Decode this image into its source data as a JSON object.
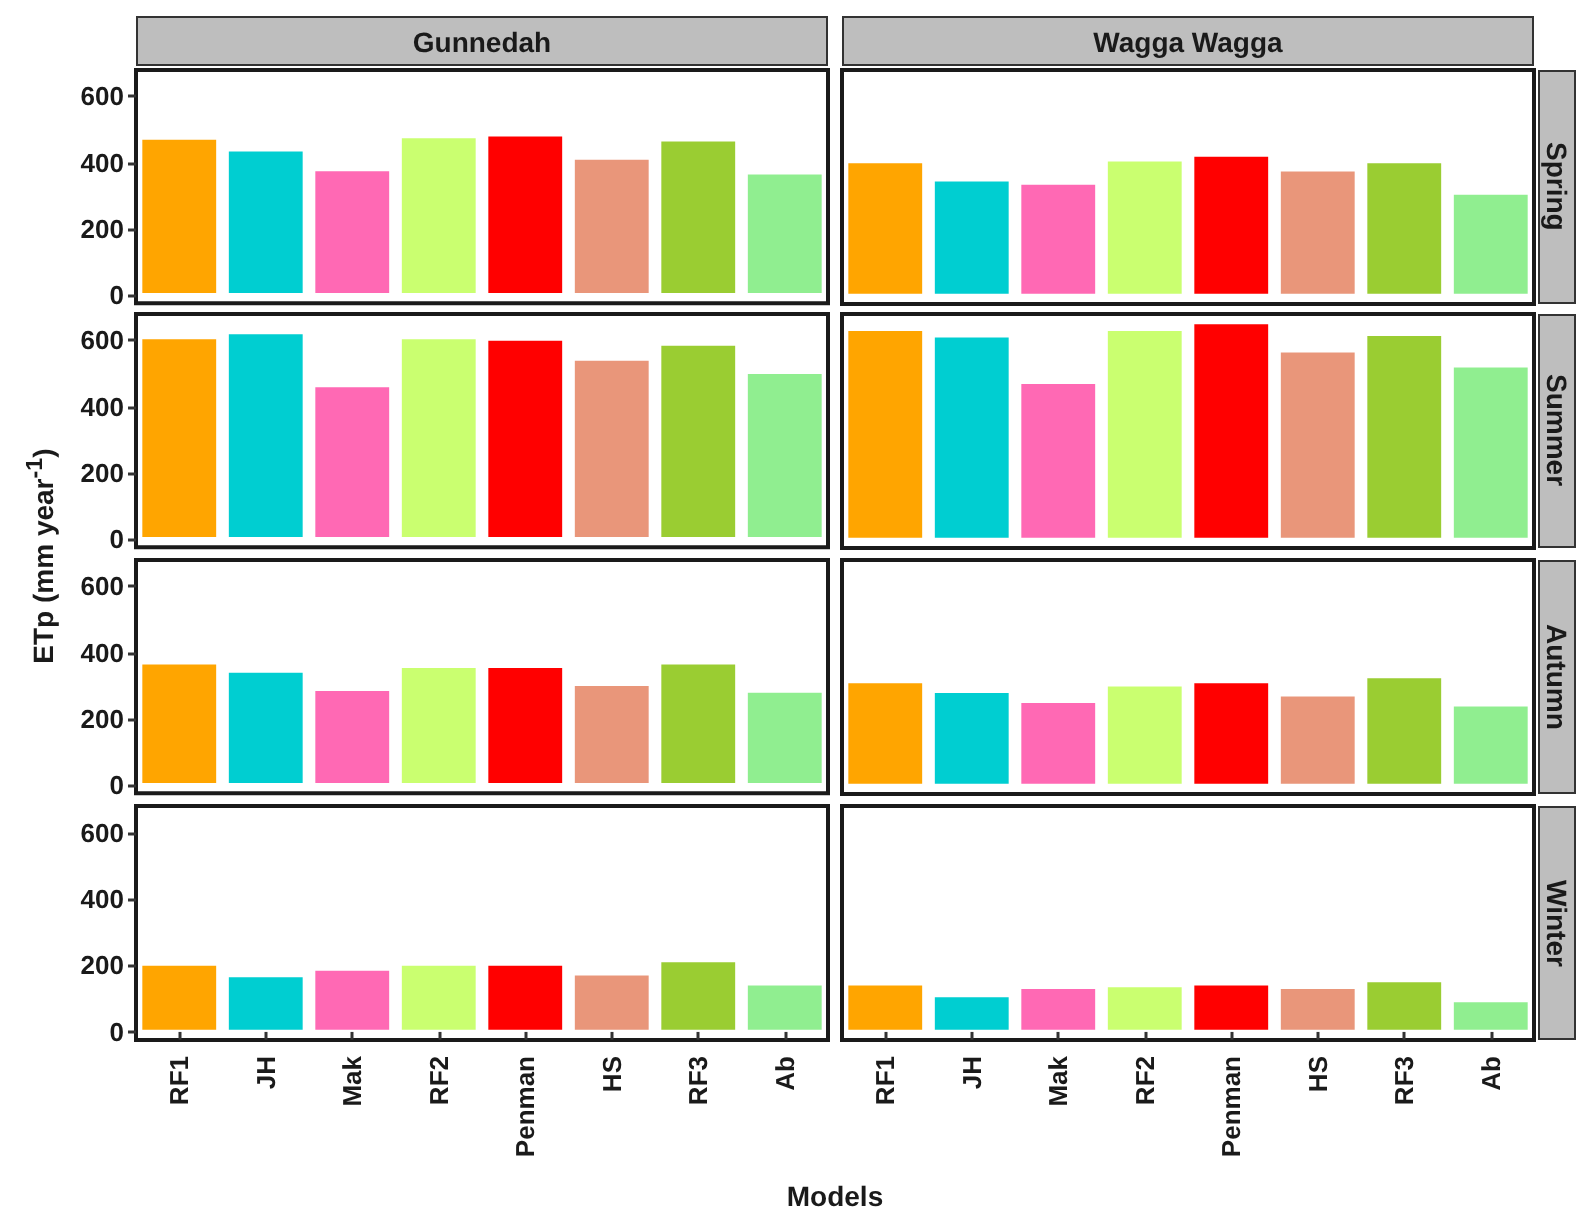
{
  "chart_data": [
    {
      "type": "bar",
      "title": "Gunnedah",
      "ylabel": "ETp (mm year$^{-1}$)",
      "categories": [
        "RF1",
        "JH",
        "Mak",
        "RF2",
        "Penman",
        "HS",
        "RF3",
        "Ab"
      ],
      "values": [
        475,
        440,
        380,
        480,
        485,
        415,
        470,
        370
      ],
      "colors": [
        "#ffa500",
        "#00ced1",
        "#ff69b4",
        "#caff70",
        "#ff0000",
        "#e9967a",
        "#9acd32",
        "#90ee90"
      ],
      "ylim": [
        -25,
        680
      ],
      "yticks": [
        0,
        200,
        400,
        600
      ],
      "tick_labels": "y"
    },
    {
      "type": "bar",
      "title": "Wagga Wagga",
      "subtitle": "Spring",
      "categories": [
        "RF1",
        "JH",
        "Mak",
        "RF2",
        "Penman",
        "HS",
        "RF3",
        "Ab"
      ],
      "values": [
        405,
        350,
        340,
        410,
        425,
        380,
        405,
        310
      ],
      "colors": [
        "#ffa500",
        "#00ced1",
        "#ff69b4",
        "#caff70",
        "#ff0000",
        "#e9967a",
        "#9acd32",
        "#90ee90"
      ],
      "ylim": [
        -25,
        680
      ],
      "yticks": [
        0,
        200,
        400,
        600
      ],
      "tick_labels": false
    },
    {
      "type": "bar",
      "categories": [
        "RF1",
        "JH",
        "Mak",
        "RF2",
        "Penman",
        "HS",
        "RF3",
        "Ab"
      ],
      "values": [
        610,
        625,
        465,
        610,
        605,
        545,
        590,
        505
      ],
      "colors": [
        "#ffa500",
        "#00ced1",
        "#ff69b4",
        "#caff70",
        "#ff0000",
        "#e9967a",
        "#9acd32",
        "#90ee90"
      ],
      "ylim": [
        -25,
        680
      ],
      "yticks": [
        0,
        200,
        400,
        600
      ],
      "tick_labels": "y"
    },
    {
      "type": "bar",
      "subtitle": "Summer",
      "categories": [
        "RF1",
        "JH",
        "Mak",
        "RF2",
        "Penman",
        "HS",
        "RF3",
        "Ab"
      ],
      "values": [
        635,
        615,
        475,
        635,
        655,
        570,
        620,
        525
      ],
      "colors": [
        "#ffa500",
        "#00ced1",
        "#ff69b4",
        "#caff70",
        "#ff0000",
        "#e9967a",
        "#9acd32",
        "#90ee90"
      ],
      "ylim": [
        -25,
        680
      ],
      "yticks": [
        0,
        200,
        400,
        600
      ],
      "tick_labels": false
    },
    {
      "type": "bar",
      "categories": [
        "RF1",
        "JH",
        "Mak",
        "RF2",
        "Penman",
        "HS",
        "RF3",
        "Ab"
      ],
      "values": [
        370,
        345,
        290,
        360,
        360,
        305,
        370,
        285
      ],
      "colors": [
        "#ffa500",
        "#00ced1",
        "#ff69b4",
        "#caff70",
        "#ff0000",
        "#e9967a",
        "#9acd32",
        "#90ee90"
      ],
      "ylim": [
        -25,
        680
      ],
      "yticks": [
        0,
        200,
        400,
        600
      ],
      "tick_labels": "y"
    },
    {
      "type": "bar",
      "subtitle": "Autumn",
      "categories": [
        "RF1",
        "JH",
        "Mak",
        "RF2",
        "Penman",
        "HS",
        "RF3",
        "Ab"
      ],
      "values": [
        315,
        285,
        255,
        305,
        315,
        275,
        330,
        245
      ],
      "colors": [
        "#ffa500",
        "#00ced1",
        "#ff69b4",
        "#caff70",
        "#ff0000",
        "#e9967a",
        "#9acd32",
        "#90ee90"
      ],
      "ylim": [
        -25,
        680
      ],
      "yticks": [
        0,
        200,
        400,
        600
      ],
      "tick_labels": false
    },
    {
      "type": "bar",
      "xlabel": "Models",
      "categories": [
        "RF1",
        "JH",
        "Mak",
        "RF2",
        "Penman",
        "HS",
        "RF3",
        "Ab"
      ],
      "values": [
        205,
        170,
        190,
        205,
        205,
        175,
        215,
        145
      ],
      "colors": [
        "#ffa500",
        "#00ced1",
        "#ff69b4",
        "#caff70",
        "#ff0000",
        "#e9967a",
        "#9acd32",
        "#90ee90"
      ],
      "ylim": [
        -25,
        680
      ],
      "yticks": [
        0,
        200,
        400,
        600
      ]
    },
    {
      "type": "bar",
      "subtitle": "Winter",
      "categories": [
        "RF1",
        "JH",
        "Mak",
        "RF2",
        "Penman",
        "HS",
        "RF3",
        "Ab"
      ],
      "values": [
        145,
        110,
        135,
        140,
        145,
        135,
        155,
        95
      ],
      "colors": [
        "#ffa500",
        "#00ced1",
        "#ff69b4",
        "#caff70",
        "#ff0000",
        "#e9967a",
        "#9acd32",
        "#90ee90"
      ],
      "ylim": [
        -25,
        680
      ],
      "yticks": [
        0,
        200,
        400,
        600
      ],
      "tick_labels": "x"
    }
  ]
}
